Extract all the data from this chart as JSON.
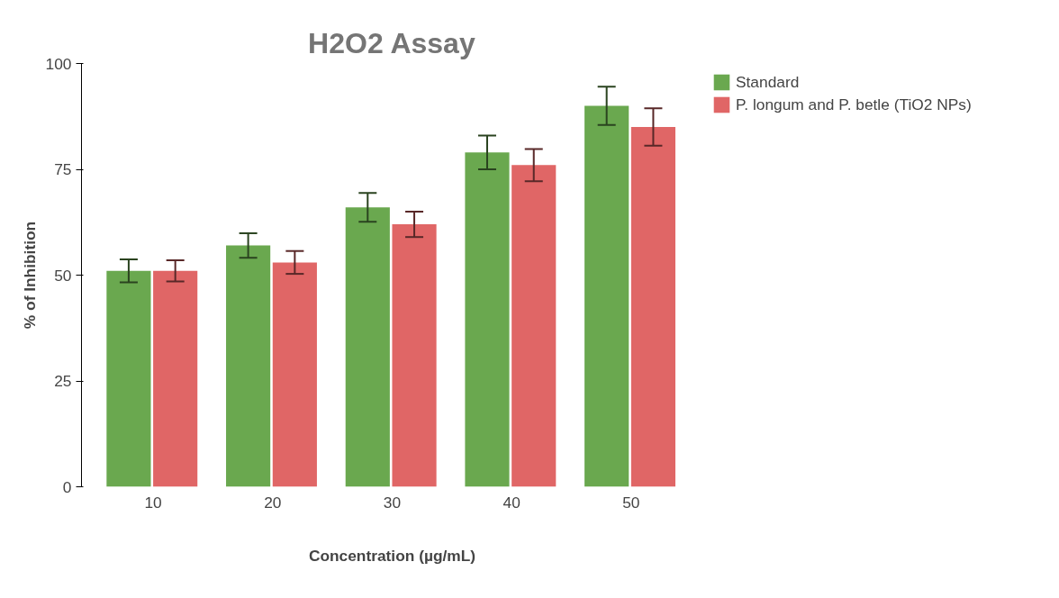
{
  "chart_data": {
    "type": "bar",
    "title": "H2O2 Assay",
    "xlabel": "Concentration (µg/mL)",
    "ylabel": "% of Inhibition",
    "categories": [
      "10",
      "20",
      "30",
      "40",
      "50"
    ],
    "series": [
      {
        "name": "Standard",
        "color": "#6aa84f",
        "values": [
          51,
          57,
          66,
          79,
          90
        ],
        "errors": [
          2.7,
          2.9,
          3.4,
          4,
          4.5
        ]
      },
      {
        "name": "P. longum and P. betle (TiO2 NPs)",
        "color": "#e06666",
        "values": [
          51,
          53,
          62,
          76,
          85
        ],
        "errors": [
          2.5,
          2.7,
          3,
          3.8,
          4.4
        ]
      }
    ],
    "ylim": [
      0,
      100
    ],
    "yticks": [
      0,
      25,
      50,
      75,
      100
    ],
    "grid": false,
    "legend": "top right"
  }
}
